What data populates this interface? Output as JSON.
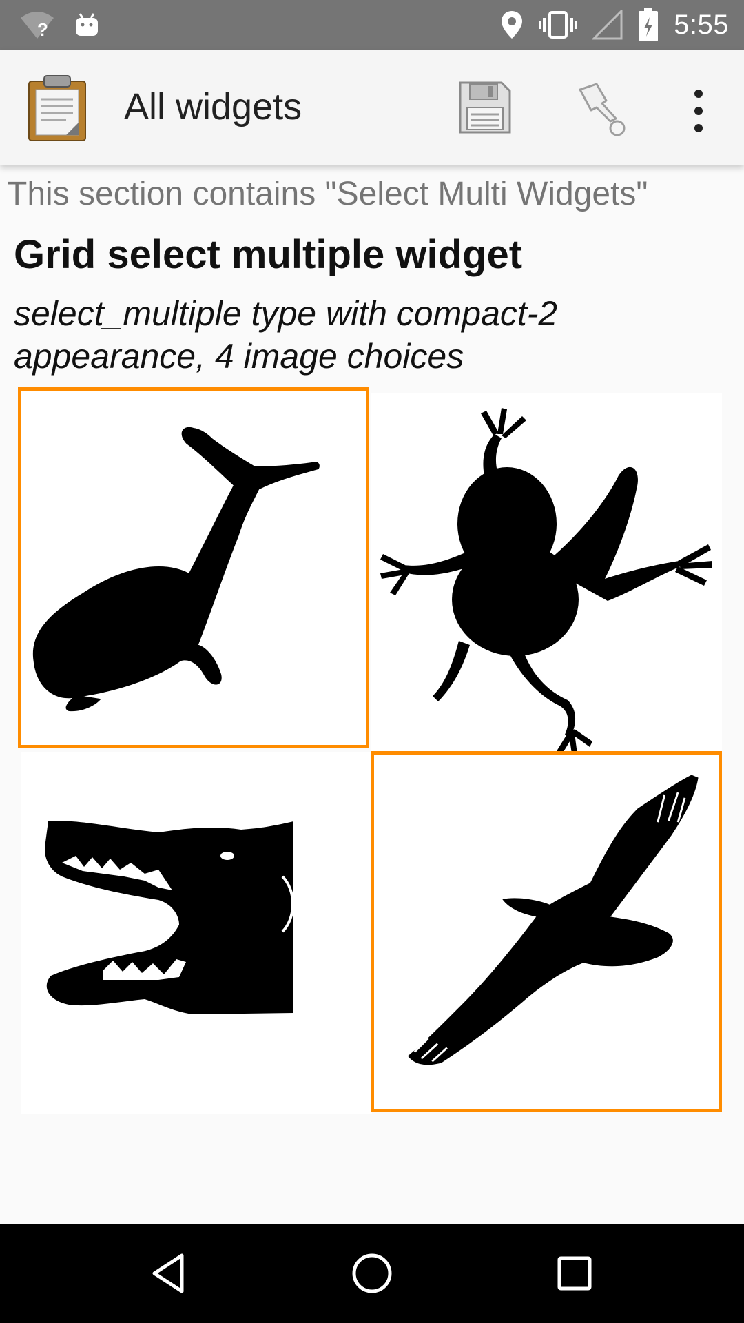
{
  "status_bar": {
    "time": "5:55",
    "wifi_badge": "?",
    "icons": [
      "wifi-unknown-icon",
      "android-icon",
      "location-icon",
      "vibrate-icon",
      "no-signal-icon",
      "battery-charging-icon"
    ]
  },
  "app_bar": {
    "title": "All widgets",
    "icons": [
      "clipboard-icon",
      "save-icon",
      "go-to-prompt-icon",
      "more-vert-icon"
    ]
  },
  "content": {
    "section_header": "This section contains \"Select Multi Widgets\"",
    "question_title": "Grid select multiple widget",
    "question_hint": "select_multiple type with compact-2 appearance, 4 image choices",
    "choices": [
      {
        "icon": "whale-icon",
        "selected": true
      },
      {
        "icon": "frog-icon",
        "selected": false
      },
      {
        "icon": "crocodile-icon",
        "selected": false
      },
      {
        "icon": "eagle-icon",
        "selected": true
      }
    ],
    "selection_color": "#ff8c00"
  },
  "nav_bar": {
    "icons": [
      "back-icon",
      "home-icon",
      "recents-icon"
    ]
  }
}
